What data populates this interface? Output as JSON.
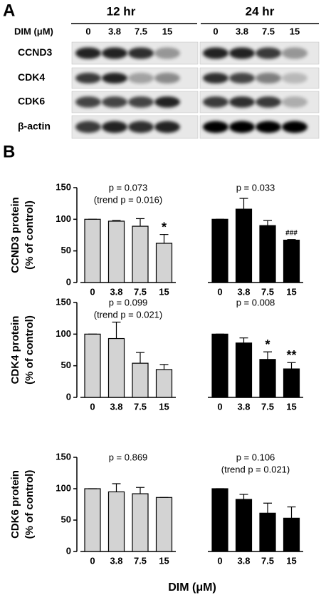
{
  "panel_a": {
    "label": "A",
    "groups": [
      "12 hr",
      "24 hr"
    ],
    "lane_title": "DIM (μM)",
    "lanes": [
      "0",
      "3.8",
      "7.5",
      "15",
      "0",
      "3.8",
      "7.5",
      "15"
    ],
    "proteins": [
      "CCND3",
      "CDK4",
      "CDK6",
      "β-actin"
    ]
  },
  "panel_b_label": "B",
  "chart_data": [
    {
      "type": "bar",
      "y_label": [
        "CCND3 protein",
        "(% of control)"
      ],
      "categories": [
        "0",
        "3.8",
        "7.5",
        "15",
        "0",
        "3.8",
        "7.5",
        "15"
      ],
      "values": [
        100,
        97,
        89,
        62,
        100,
        116,
        90,
        67
      ],
      "errors": [
        0,
        1,
        12,
        14,
        0,
        17,
        8,
        1
      ],
      "colors": [
        "#d3d3d3",
        "#d3d3d3",
        "#d3d3d3",
        "#d3d3d3",
        "#000000",
        "#000000",
        "#000000",
        "#000000"
      ],
      "significance": [
        null,
        null,
        null,
        "*",
        null,
        null,
        null,
        "###"
      ],
      "group_notes": [
        [
          "p = 0.073",
          "(trend p = 0.016)"
        ],
        [
          "p = 0.033"
        ]
      ],
      "ylim": [
        0,
        150
      ],
      "yticks": [
        0,
        50,
        100,
        150
      ]
    },
    {
      "type": "bar",
      "y_label": [
        "CDK4 protein",
        "(% of control)"
      ],
      "categories": [
        "0",
        "3.8",
        "7.5",
        "15",
        "0",
        "3.8",
        "7.5",
        "15"
      ],
      "values": [
        100,
        93,
        54,
        44,
        100,
        86,
        60,
        45
      ],
      "errors": [
        0,
        26,
        17,
        8,
        0,
        8,
        12,
        10
      ],
      "colors": [
        "#d3d3d3",
        "#d3d3d3",
        "#d3d3d3",
        "#d3d3d3",
        "#000000",
        "#000000",
        "#000000",
        "#000000"
      ],
      "significance": [
        null,
        null,
        null,
        null,
        null,
        null,
        "*",
        "**"
      ],
      "group_notes": [
        [
          "p = 0.099",
          "(trend p = 0.021)"
        ],
        [
          "p = 0.008"
        ]
      ],
      "ylim": [
        0,
        150
      ],
      "yticks": [
        0,
        50,
        100,
        150
      ]
    },
    {
      "type": "bar",
      "y_label": [
        "CDK6 protein",
        "(% of control)"
      ],
      "categories": [
        "0",
        "3.8",
        "7.5",
        "15",
        "0",
        "3.8",
        "7.5",
        "15"
      ],
      "values": [
        100,
        95,
        92,
        86,
        100,
        83,
        61,
        53
      ],
      "errors": [
        0,
        13,
        10,
        0,
        0,
        8,
        16,
        18
      ],
      "colors": [
        "#d3d3d3",
        "#d3d3d3",
        "#d3d3d3",
        "#d3d3d3",
        "#000000",
        "#000000",
        "#000000",
        "#000000"
      ],
      "significance": [
        null,
        null,
        null,
        null,
        null,
        null,
        null,
        null
      ],
      "group_notes": [
        [
          "p = 0.869"
        ],
        [
          "p = 0.106",
          "(trend p = 0.021)"
        ]
      ],
      "ylim": [
        0,
        150
      ],
      "yticks": [
        0,
        50,
        100,
        150
      ],
      "x_label": "DIM (μM)"
    }
  ]
}
